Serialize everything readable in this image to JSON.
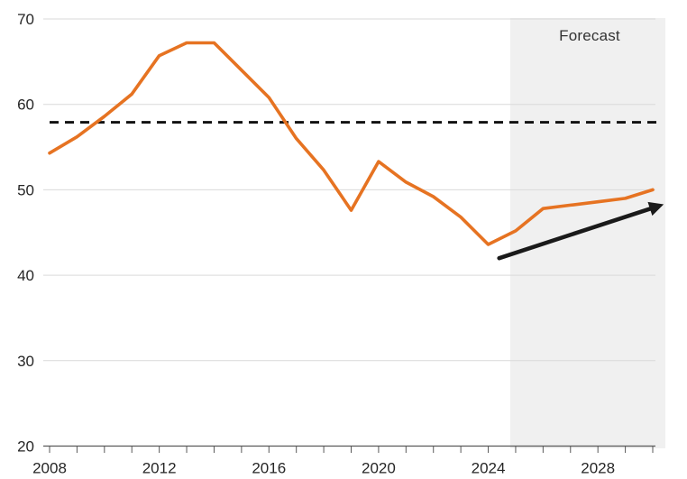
{
  "chart_data": {
    "type": "line",
    "title": "",
    "xlabel": "",
    "ylabel": "",
    "x": [
      2008,
      2009,
      2010,
      2011,
      2012,
      2013,
      2014,
      2015,
      2016,
      2017,
      2018,
      2019,
      2020,
      2021,
      2022,
      2023,
      2024,
      2025,
      2026,
      2027,
      2028,
      2029,
      2030
    ],
    "series": [
      {
        "name": "orange-line",
        "color": "#E67322",
        "values": [
          54.3,
          56.2,
          58.6,
          61.2,
          65.7,
          67.2,
          67.2,
          64.0,
          60.8,
          56.0,
          52.3,
          47.6,
          53.3,
          50.9,
          49.2,
          46.8,
          43.6,
          45.2,
          47.8,
          48.2,
          48.6,
          49.0,
          50.0
        ]
      }
    ],
    "baseline": {
      "value": 57.9,
      "style": "dashed",
      "color": "#111111"
    },
    "forecast_region": {
      "label": "Forecast",
      "start_x": 2024.8,
      "fill": "#F0F0F0"
    },
    "arrow": {
      "from": {
        "x": 2024.4,
        "y": 42.0
      },
      "to": {
        "x": 2030.4,
        "y": 48.3
      },
      "color": "#1A1A1A"
    },
    "xlim": [
      2008,
      2030
    ],
    "ylim": [
      20,
      70
    ],
    "yticks": [
      20,
      30,
      40,
      50,
      60,
      70
    ],
    "xticks_labeled": [
      2008,
      2012,
      2016,
      2020,
      2024,
      2028
    ],
    "xticks_minor_every": 1,
    "grid": "horizontal",
    "legend": "none",
    "colors": {
      "grid": "#D9D9D9",
      "axis": "#595959",
      "tick_text": "#262626"
    }
  }
}
